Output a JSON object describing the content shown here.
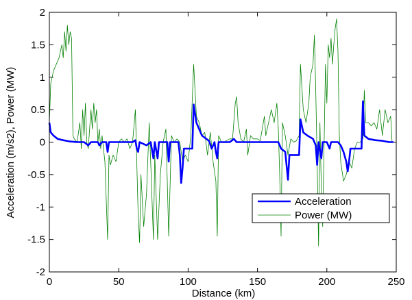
{
  "chart_data": {
    "type": "line",
    "xlabel": "Distance (km)",
    "ylabel": "Acceleration (m/s2), Power (MW)",
    "xlim": [
      0,
      250
    ],
    "ylim": [
      -2,
      2
    ],
    "xticks": [
      0,
      50,
      100,
      150,
      200,
      250
    ],
    "yticks": [
      -2,
      -1.5,
      -1,
      -0.5,
      0,
      0.5,
      1,
      1.5,
      2
    ],
    "legend": "lower right",
    "series": [
      {
        "name": "Acceleration",
        "color": "#0000ff",
        "x": [
          0,
          1,
          3,
          6,
          10,
          15,
          20,
          25,
          28,
          30,
          35,
          36,
          38,
          41,
          42,
          43,
          50,
          60,
          62,
          63,
          64,
          65,
          70,
          73,
          75,
          76,
          78,
          79,
          85,
          86,
          87,
          93,
          94,
          95,
          96,
          97,
          100,
          103,
          104,
          106,
          110,
          115,
          117,
          119,
          120,
          121,
          122,
          130,
          133,
          135,
          150,
          160,
          165,
          167,
          170,
          172,
          173,
          176,
          180,
          181,
          183,
          186,
          190,
          192,
          193,
          194,
          196,
          197,
          200,
          202,
          203,
          208,
          210,
          212,
          214,
          215,
          216,
          217,
          225,
          226,
          227,
          230,
          235,
          240,
          245,
          248
        ],
        "values": [
          0.3,
          0.15,
          0.1,
          0.05,
          0.03,
          0.01,
          0,
          0,
          -0.05,
          0,
          0,
          -0.05,
          0,
          0,
          -0.15,
          0,
          0,
          0,
          0.03,
          -0.1,
          -0.15,
          0,
          -0.05,
          0,
          -0.25,
          0,
          -0.25,
          0,
          0,
          -0.3,
          0,
          0,
          -0.2,
          -0.63,
          -0.4,
          -0.1,
          -0.1,
          -0.1,
          0.58,
          0.3,
          0.1,
          0.02,
          -0.1,
          0,
          -0.15,
          -0.25,
          0,
          0,
          0.05,
          0,
          0,
          0,
          0,
          -0.1,
          -0.15,
          -0.58,
          -0.2,
          -0.2,
          -0.2,
          0.35,
          0.15,
          0.1,
          0.05,
          -0.05,
          -0.35,
          0,
          -0.25,
          0,
          0,
          -0.1,
          0,
          0,
          -0.05,
          -0.15,
          -0.3,
          -0.45,
          -0.3,
          -0.1,
          -0.1,
          0.63,
          0.1,
          0.05,
          0.03,
          0.02,
          0,
          0
        ]
      },
      {
        "name": "Power (MW)",
        "color": "#008000",
        "x": [
          0,
          1,
          3,
          5,
          7,
          9,
          10,
          11,
          12,
          13,
          14,
          15,
          16,
          17,
          18,
          20,
          22,
          23,
          24,
          25,
          26,
          27,
          28,
          30,
          31,
          32,
          33,
          34,
          35,
          36,
          37,
          38,
          40,
          42,
          43,
          44,
          46,
          48,
          50,
          52,
          54,
          56,
          58,
          60,
          62,
          63,
          64,
          65,
          66,
          67,
          68,
          70,
          72,
          73,
          75,
          76,
          78,
          80,
          82,
          84,
          86,
          88,
          90,
          92,
          94,
          96,
          98,
          100,
          102,
          104,
          106,
          108,
          110,
          112,
          114,
          116,
          118,
          120,
          121,
          122,
          124,
          126,
          128,
          130,
          132,
          134,
          135,
          136,
          138,
          140,
          142,
          143,
          145,
          147,
          150,
          152,
          155,
          156,
          158,
          160,
          162,
          164,
          165,
          166,
          167,
          168,
          170,
          172,
          174,
          176,
          178,
          180,
          181,
          183,
          185,
          187,
          188,
          190,
          191,
          192,
          193,
          194,
          195,
          196,
          197,
          199,
          200,
          201,
          202,
          203,
          204,
          205,
          206,
          207,
          208,
          209,
          210,
          212,
          214,
          216,
          218,
          220,
          222,
          224,
          226,
          227,
          228,
          230,
          232,
          234,
          236,
          238,
          240,
          242,
          244,
          246,
          247
        ],
        "values": [
          0.3,
          0.9,
          1.1,
          1.2,
          1.3,
          1.5,
          1.3,
          1.7,
          1.4,
          1.8,
          1.5,
          1.7,
          1.6,
          0.1,
          0.05,
          0,
          0.3,
          -0.1,
          0.5,
          0.1,
          0.6,
          0,
          -0.1,
          0.5,
          0.2,
          0.6,
          0.3,
          0.5,
          0,
          0.2,
          -0.1,
          0.1,
          -0.3,
          -1.5,
          -0.2,
          -0.35,
          -0.2,
          -0.3,
          0,
          0.05,
          0,
          0.05,
          -0.1,
          0,
          0.5,
          -0.3,
          -1.1,
          -1.55,
          -0.5,
          -0.9,
          -1.3,
          -0.8,
          0.3,
          -0.3,
          -1.5,
          -0.2,
          -1.5,
          -0.5,
          0,
          0.2,
          -1.45,
          0.1,
          0,
          0.05,
          0,
          -0.3,
          -0.2,
          -0.3,
          0.1,
          1.2,
          0.4,
          0.3,
          0.1,
          0.15,
          -0.2,
          0.15,
          -0.3,
          -0.6,
          -1.45,
          0.1,
          0,
          0,
          0.03,
          0.05,
          0.05,
          0.6,
          0.7,
          0.3,
          0.05,
          0,
          0.2,
          -0.2,
          0.1,
          0.05,
          0.05,
          0.02,
          0.4,
          0.1,
          0.3,
          0.5,
          0.3,
          0.6,
          0.2,
          -0.5,
          -1.45,
          0.3,
          0.1,
          -0.2,
          0.05,
          0,
          0.02,
          0.1,
          1.2,
          0.5,
          0.3,
          0.6,
          1.0,
          1.2,
          1.65,
          0.8,
          -0.3,
          -1.6,
          0.3,
          -0.7,
          -1.3,
          1.2,
          0.6,
          1.5,
          1.3,
          1.6,
          1.2,
          1.5,
          1.75,
          1.9,
          1.4,
          0.1,
          -0.3,
          -0.6,
          -0.5,
          -0.3,
          -0.4,
          -0.1,
          0,
          0,
          0.05,
          0.8,
          0.3,
          0.3,
          0.25,
          0.3,
          0.2,
          0.5,
          0.1,
          0.5,
          0.3,
          0.4,
          0
        ]
      }
    ]
  }
}
